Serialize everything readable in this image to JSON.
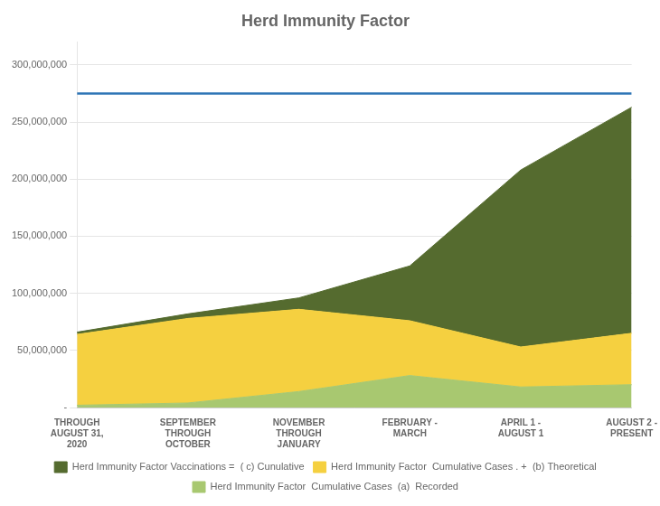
{
  "chart_data": {
    "type": "area",
    "title": "Herd Immunity Factor",
    "categories": [
      "THROUGH\nAUGUST 31,\n2020",
      "SEPTEMBER\nTHROUGH\nOCTOBER",
      "NOVEMBER\nTHROUGH\nJANUARY",
      "FEBRUARY -\nMARCH",
      "APRIL 1 -\nAUGUST 1",
      "AUGUST 2 -\nPRESENT"
    ],
    "series": [
      {
        "name": "Herd Immunity Factor  Cumulative Cases  (a)  Recorded",
        "color": "#A8C870",
        "values": [
          2000000,
          4000000,
          14000000,
          28000000,
          18000000,
          20000000
        ]
      },
      {
        "name": "Herd Immunity Factor  Cumulative Cases . +  (b) Theoretical",
        "color": "#F5D040",
        "values": [
          62000000,
          74000000,
          72000000,
          48000000,
          35000000,
          45000000
        ]
      },
      {
        "name": "Herd Immunity Factor Vaccinations =  ( c) Cunulative",
        "color": "#556B2F",
        "values": [
          2000000,
          4000000,
          10000000,
          48000000,
          155000000,
          198000000
        ]
      }
    ],
    "stacked": true,
    "hline": {
      "value": 275000000,
      "color": "#2E75B6"
    },
    "ylim": [
      0,
      320000000
    ],
    "yticks": [
      {
        "value": 0,
        "label": " -"
      },
      {
        "value": 50000000,
        "label": "50,000,000"
      },
      {
        "value": 100000000,
        "label": "100,000,000"
      },
      {
        "value": 150000000,
        "label": "150,000,000"
      },
      {
        "value": 200000000,
        "label": "200,000,000"
      },
      {
        "value": 250000000,
        "label": "250,000,000"
      },
      {
        "value": 300000000,
        "label": "300,000,000"
      }
    ],
    "grid": true,
    "legend": "bottom"
  }
}
